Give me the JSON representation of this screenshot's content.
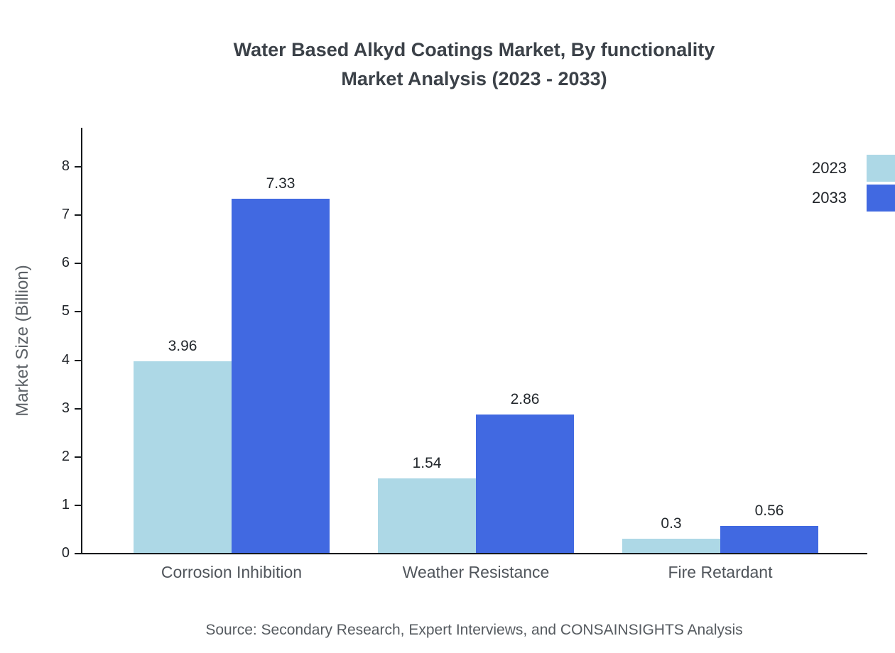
{
  "title": {
    "line1": "Water Based Alkyd Coatings Market, By functionality",
    "line2": "Market Analysis (2023 - 2033)"
  },
  "ylabel": "Market Size (Billion)",
  "source": "Source: Secondary Research, Expert Interviews, and CONSAINSIGHTS Analysis",
  "legend": [
    {
      "label": "2023",
      "color": "#ADD8E6"
    },
    {
      "label": "2033",
      "color": "#4169E1"
    }
  ],
  "chart_data": {
    "type": "bar",
    "title": "Water Based Alkyd Coatings Market, By functionality Market Analysis (2023 - 2033)",
    "categories": [
      "Corrosion Inhibition",
      "Weather Resistance",
      "Fire Retardant"
    ],
    "series": [
      {
        "name": "2023",
        "color": "#ADD8E6",
        "values": [
          3.96,
          1.54,
          0.3
        ]
      },
      {
        "name": "2033",
        "color": "#4169E1",
        "values": [
          7.33,
          2.86,
          0.56
        ]
      }
    ],
    "value_labels": [
      [
        "3.96",
        "1.54",
        "0.3"
      ],
      [
        "7.33",
        "2.86",
        "0.56"
      ]
    ],
    "xlabel": "",
    "ylabel": "Market Size (Billion)",
    "ylim": [
      0,
      8
    ],
    "yticks": [
      0,
      1,
      2,
      3,
      4,
      5,
      6,
      7,
      8
    ],
    "grid": false,
    "legend_position": "top-right"
  }
}
